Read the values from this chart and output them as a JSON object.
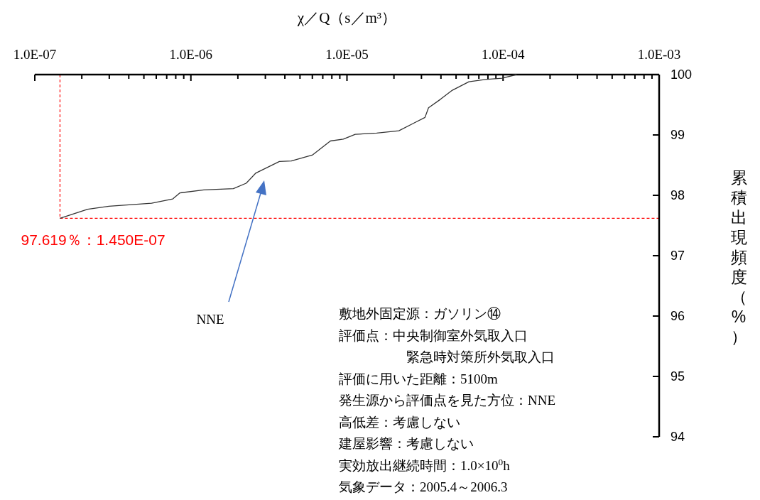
{
  "chart_data": {
    "type": "line",
    "xlabel": "χ／Q（s／m³）",
    "ylabel": "累積出現頻度（%）",
    "log": "x",
    "xlim": [
      1e-07,
      0.001
    ],
    "ylim": [
      94,
      100
    ],
    "xticks": [
      {
        "value": 1e-07,
        "label": "1.0E-07"
      },
      {
        "value": 2e-07,
        "label": null
      },
      {
        "value": 3e-07,
        "label": null
      },
      {
        "value": 4e-07,
        "label": null
      },
      {
        "value": 5e-07,
        "label": null
      },
      {
        "value": 6e-07,
        "label": null
      },
      {
        "value": 7e-07,
        "label": null
      },
      {
        "value": 8e-07,
        "label": null
      },
      {
        "value": 9e-07,
        "label": null
      },
      {
        "value": 1e-06,
        "label": "1.0E-06"
      },
      {
        "value": 2e-06,
        "label": null
      },
      {
        "value": 3e-06,
        "label": null
      },
      {
        "value": 4e-06,
        "label": null
      },
      {
        "value": 5e-06,
        "label": null
      },
      {
        "value": 6e-06,
        "label": null
      },
      {
        "value": 7e-06,
        "label": null
      },
      {
        "value": 8e-06,
        "label": null
      },
      {
        "value": 9e-06,
        "label": null
      },
      {
        "value": 1e-05,
        "label": "1.0E-05"
      },
      {
        "value": 2e-05,
        "label": null
      },
      {
        "value": 3e-05,
        "label": null
      },
      {
        "value": 4e-05,
        "label": null
      },
      {
        "value": 5e-05,
        "label": null
      },
      {
        "value": 6e-05,
        "label": null
      },
      {
        "value": 7e-05,
        "label": null
      },
      {
        "value": 8e-05,
        "label": null
      },
      {
        "value": 9e-05,
        "label": null
      },
      {
        "value": 0.0001,
        "label": "1.0E-04"
      },
      {
        "value": 0.0002,
        "label": null
      },
      {
        "value": 0.0003,
        "label": null
      },
      {
        "value": 0.0004,
        "label": null
      },
      {
        "value": 0.0005,
        "label": null
      },
      {
        "value": 0.0006,
        "label": null
      },
      {
        "value": 0.0007,
        "label": null
      },
      {
        "value": 0.0008,
        "label": null
      },
      {
        "value": 0.0009,
        "label": null
      },
      {
        "value": 0.001,
        "label": "1.0E-03"
      }
    ],
    "yticks": [
      94,
      95,
      96,
      97,
      98,
      99,
      100
    ],
    "grid": false,
    "marker": "none",
    "line_style": "solid",
    "series": [
      {
        "color": "#333333",
        "x": [
          1.45e-07,
          2.18e-07,
          2.99e-07,
          5.6e-07,
          7.66e-07,
          8.51e-07,
          1.21e-06,
          1.87e-06,
          2.26e-06,
          2.61e-06,
          3.69e-06,
          4.4e-06,
          6.03e-06,
          7.83e-06,
          9.48e-06,
          1.13e-05,
          1.55e-05,
          2.15e-05,
          2.7e-05,
          3.16e-05,
          3.33e-05,
          3.97e-05,
          4.73e-05,
          6.04e-05,
          7.71e-05,
          9.86e-05,
          0.000122
        ],
        "values": [
          97.62,
          97.77,
          97.82,
          97.87,
          97.94,
          98.04,
          98.09,
          98.11,
          98.2,
          98.37,
          98.56,
          98.57,
          98.67,
          98.9,
          98.93,
          99.01,
          99.03,
          99.07,
          99.2,
          99.29,
          99.45,
          99.59,
          99.74,
          99.88,
          99.92,
          99.94,
          100
        ]
      }
    ],
    "ref_lines": [
      {
        "axis": "x",
        "value": 1.45e-07,
        "color": "#ff0000",
        "line_style": "dashed"
      },
      {
        "axis": "y",
        "value": 97.619,
        "color": "#ff0000",
        "line_style": "dashed"
      }
    ],
    "annotations": [
      {
        "text": "97.619％：1.450E-07",
        "x": 1.45e-07,
        "y": 97.619
      },
      "NNE",
      "敷地外固定源：ガソリン⑭",
      "評価点：中央制御室外気取入口",
      "　　　　　緊急時対策所外気取入口",
      "評価に用いた距離：5100m",
      "発生源から評価点を見た方位：NNE",
      "高低差：考慮しない",
      "建屋影響：考慮しない",
      "実効放出継続時間：1.0×10$^{0}$h",
      "気象データ：2005.4～2006.3"
    ]
  }
}
